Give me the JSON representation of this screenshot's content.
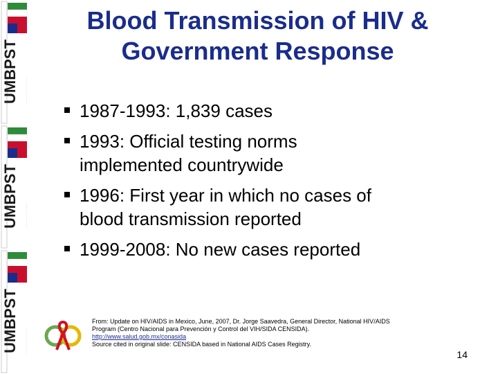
{
  "slide": {
    "title_line1": "Blood Transmission of HIV &",
    "title_line2": "Government Response",
    "bullets": [
      {
        "line1": "1987-1993: 1,839 cases",
        "line2": ""
      },
      {
        "line1": "1993: Official testing norms",
        "line2": "implemented countrywide"
      },
      {
        "line1": "1996: First year in which no cases of",
        "line2": "blood transmission reported"
      },
      {
        "line1": "1999-2008: No new cases reported",
        "line2": ""
      }
    ],
    "footnote": {
      "line1": "From: Update on HIV/AIDS in Mexico, June, 2007, Dr. Jorge Saavedra, General Director, National HIV/AIDS",
      "line2": "Program (Centro Nacional para Prevención y Control del VIH/SIDA CENSIDA).",
      "link": "http://www.salud.gob.mx/conasida",
      "line4": "Source cited in original slide: CENSIDA based in National AIDS Cases Registry."
    },
    "page_number": "14"
  },
  "banner": {
    "logo_text": "UMBPST",
    "repeat_count": 3
  },
  "colors": {
    "title": "#1a2d8c",
    "banner_red": "#c8102e",
    "banner_green": "#2e8b3a",
    "banner_blue": "#1a2d8c",
    "ribbon_red": "#d0102a"
  },
  "icons": [
    "square-bullet-icon",
    "red-ribbon-logo-icon",
    "flag-icon"
  ]
}
